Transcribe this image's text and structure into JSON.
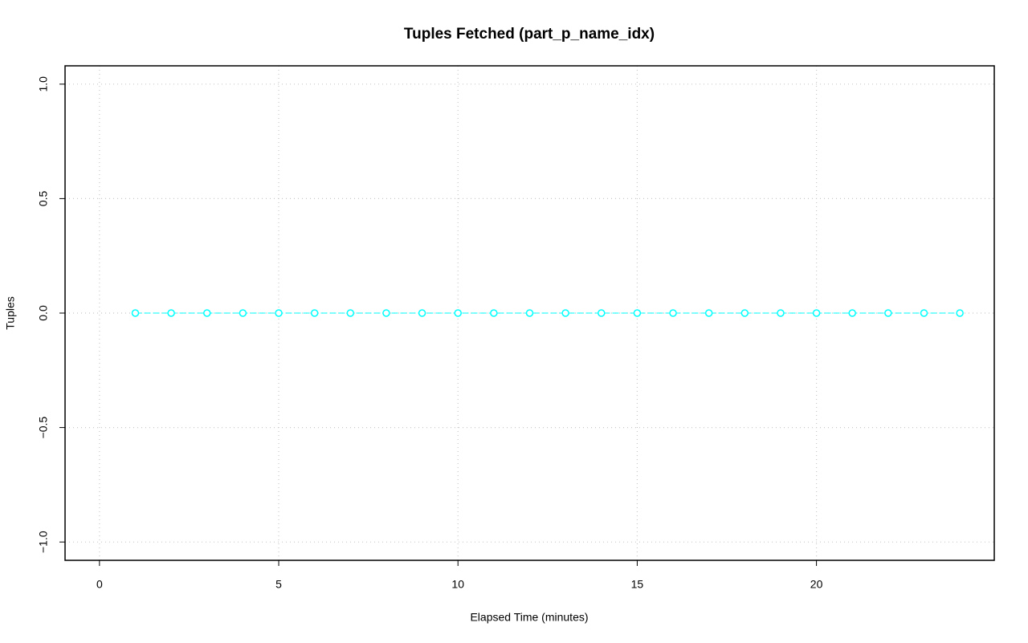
{
  "chart_data": {
    "type": "line",
    "title": "Tuples Fetched (part_p_name_idx)",
    "x_label": "Elapsed Time (minutes)",
    "y_label": "Tuples",
    "x": [
      1,
      2,
      3,
      4,
      5,
      6,
      7,
      8,
      9,
      10,
      11,
      12,
      13,
      14,
      15,
      16,
      17,
      18,
      19,
      20,
      21,
      22,
      23,
      24
    ],
    "values": [
      0,
      0,
      0,
      0,
      0,
      0,
      0,
      0,
      0,
      0,
      0,
      0,
      0,
      0,
      0,
      0,
      0,
      0,
      0,
      0,
      0,
      0,
      0,
      0
    ],
    "color": "#00ffff",
    "xlim": [
      -0.96,
      24.96
    ],
    "xticks": [
      0,
      5,
      10,
      15,
      20
    ],
    "ylim": [
      -1.08,
      1.08
    ],
    "yticks": [
      {
        "value": -1,
        "label": "−1.0"
      },
      {
        "value": -0.5,
        "label": "−0.5"
      },
      {
        "value": 0,
        "label": "0.0"
      },
      {
        "value": 0.5,
        "label": "0.5"
      },
      {
        "value": 1,
        "label": "1.0"
      }
    ],
    "grid": true
  }
}
